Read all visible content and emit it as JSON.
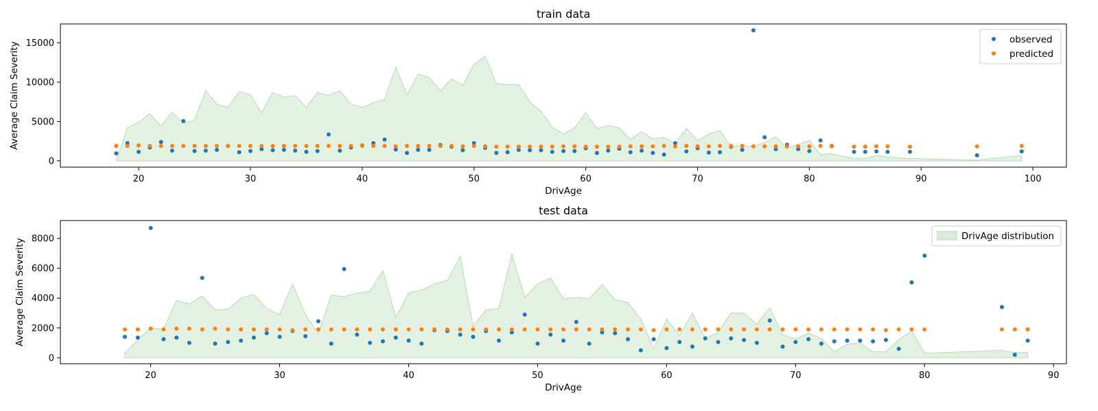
{
  "colors": {
    "observed": "#1f77b4",
    "predicted": "#ff7f0e",
    "distribution_fill": "#d9ecd9",
    "distribution_stroke": "#b4dbb4"
  },
  "chart_data": [
    {
      "type": "scatter",
      "title": "train data",
      "xlabel": "DrivAge",
      "ylabel": "Average Claim Severity",
      "xlim": [
        13,
        103
      ],
      "ylim": [
        -800,
        17400
      ],
      "xticks": [
        20,
        30,
        40,
        50,
        60,
        70,
        80,
        90,
        100
      ],
      "yticks": [
        0,
        5000,
        10000,
        15000
      ],
      "grid": false,
      "legend": {
        "position": "top-right",
        "entries": [
          "observed",
          "predicted"
        ]
      },
      "series": [
        {
          "name": "observed",
          "kind": "points",
          "x": [
            18,
            19,
            20,
            21,
            22,
            23,
            24,
            25,
            26,
            27,
            28,
            29,
            30,
            31,
            32,
            33,
            34,
            35,
            36,
            37,
            38,
            39,
            40,
            41,
            42,
            43,
            44,
            45,
            46,
            47,
            48,
            49,
            50,
            51,
            52,
            53,
            54,
            55,
            56,
            57,
            58,
            59,
            60,
            61,
            62,
            63,
            64,
            65,
            66,
            67,
            68,
            69,
            70,
            71,
            72,
            73,
            74,
            75,
            76,
            77,
            78,
            79,
            80,
            81,
            82,
            84,
            85,
            86,
            87,
            89,
            95,
            99
          ],
          "y": [
            950,
            2250,
            1150,
            1700,
            2400,
            1300,
            5050,
            1250,
            1300,
            1400,
            1900,
            1100,
            1250,
            1500,
            1350,
            1400,
            1300,
            1150,
            1250,
            3350,
            1300,
            1700,
            1950,
            2250,
            2700,
            1450,
            1000,
            1400,
            1400,
            2000,
            1800,
            1350,
            2250,
            1650,
            1000,
            1100,
            1400,
            1350,
            1350,
            1150,
            1250,
            1250,
            1600,
            1000,
            1300,
            1550,
            1100,
            1300,
            1000,
            800,
            2250,
            1200,
            1600,
            1050,
            1100,
            1800,
            1400,
            16600,
            3000,
            1500,
            2050,
            1500,
            1250,
            2600,
            1900,
            1150,
            1150,
            1200,
            1150,
            1150,
            700,
            1200
          ]
        },
        {
          "name": "predicted",
          "kind": "points",
          "x": [
            18,
            19,
            20,
            21,
            22,
            23,
            24,
            25,
            26,
            27,
            28,
            29,
            30,
            31,
            32,
            33,
            34,
            35,
            36,
            37,
            38,
            39,
            40,
            41,
            42,
            43,
            44,
            45,
            46,
            47,
            48,
            49,
            50,
            51,
            52,
            53,
            54,
            55,
            56,
            57,
            58,
            59,
            60,
            61,
            62,
            63,
            64,
            65,
            66,
            67,
            68,
            69,
            70,
            71,
            72,
            73,
            74,
            75,
            76,
            77,
            78,
            79,
            80,
            81,
            82,
            84,
            85,
            86,
            87,
            89,
            95,
            99
          ],
          "y": [
            1900,
            1900,
            1950,
            1900,
            1900,
            1900,
            1900,
            1900,
            1900,
            1900,
            1900,
            1900,
            1900,
            1900,
            1900,
            1900,
            1900,
            1900,
            1900,
            1900,
            1900,
            1900,
            1900,
            1900,
            1900,
            1850,
            1900,
            1900,
            1900,
            1900,
            1900,
            1850,
            1900,
            1850,
            1800,
            1800,
            1800,
            1800,
            1800,
            1800,
            1850,
            1850,
            1800,
            1800,
            1800,
            1800,
            1850,
            1850,
            1850,
            1900,
            1850,
            1900,
            1850,
            1850,
            1900,
            1900,
            1900,
            1850,
            1850,
            1850,
            1850,
            1850,
            1850,
            1900,
            1850,
            1800,
            1800,
            1850,
            1850,
            1800,
            1850,
            1900
          ]
        },
        {
          "name": "DrivAge distribution",
          "kind": "area",
          "x": [
            18,
            19,
            20,
            21,
            22,
            23,
            24,
            25,
            26,
            27,
            28,
            29,
            30,
            31,
            32,
            33,
            34,
            35,
            36,
            37,
            38,
            39,
            40,
            41,
            42,
            43,
            44,
            45,
            46,
            47,
            48,
            49,
            50,
            51,
            52,
            53,
            54,
            55,
            56,
            57,
            58,
            59,
            60,
            61,
            62,
            63,
            64,
            65,
            66,
            67,
            68,
            69,
            70,
            71,
            72,
            73,
            74,
            75,
            76,
            77,
            78,
            79,
            80,
            81,
            82,
            84,
            85,
            86,
            87,
            89,
            95,
            99
          ],
          "y": [
            0,
            4200,
            4900,
            6000,
            4400,
            6200,
            4800,
            5200,
            8900,
            7200,
            6800,
            8800,
            8400,
            6100,
            8700,
            8100,
            8300,
            6800,
            8700,
            8300,
            8900,
            7200,
            6800,
            7400,
            7800,
            11900,
            8400,
            11000,
            10600,
            8900,
            10400,
            9600,
            12300,
            13300,
            9800,
            9700,
            9700,
            7500,
            6300,
            4300,
            3400,
            4200,
            6100,
            4100,
            4500,
            4200,
            2700,
            3700,
            2800,
            3000,
            2200,
            4100,
            2600,
            3400,
            3900,
            1800,
            1900,
            1800,
            2300,
            3100,
            1500,
            2100,
            2600,
            800,
            900,
            300,
            300,
            700,
            500,
            300,
            100,
            700
          ]
        }
      ]
    },
    {
      "type": "scatter",
      "title": "test data",
      "xlabel": "DrivAge",
      "ylabel": "Average Claim Severity",
      "xlim": [
        13,
        91
      ],
      "ylim": [
        -400,
        9200
      ],
      "xticks": [
        20,
        30,
        40,
        50,
        60,
        70,
        80,
        90
      ],
      "yticks": [
        0,
        2000,
        4000,
        6000,
        8000
      ],
      "grid": false,
      "legend": {
        "position": "top-right",
        "entries": [
          "DrivAge distribution"
        ]
      },
      "series": [
        {
          "name": "observed",
          "kind": "points",
          "x": [
            18,
            19,
            20,
            21,
            22,
            23,
            24,
            25,
            26,
            27,
            28,
            29,
            30,
            31,
            32,
            33,
            34,
            35,
            36,
            37,
            38,
            39,
            40,
            41,
            42,
            43,
            44,
            45,
            46,
            47,
            48,
            49,
            50,
            51,
            52,
            53,
            54,
            55,
            56,
            57,
            58,
            59,
            60,
            61,
            62,
            63,
            64,
            65,
            66,
            67,
            68,
            69,
            70,
            71,
            72,
            73,
            74,
            75,
            76,
            77,
            78,
            79,
            80,
            86,
            87,
            88
          ],
          "y": [
            1400,
            1350,
            8700,
            1250,
            1350,
            1000,
            5350,
            950,
            1050,
            1150,
            1350,
            1650,
            1400,
            1800,
            1450,
            2450,
            950,
            5950,
            1550,
            1000,
            1100,
            1350,
            1150,
            950,
            1850,
            1800,
            1550,
            1400,
            1800,
            1150,
            1700,
            2900,
            950,
            1550,
            1150,
            2400,
            950,
            1700,
            1650,
            1250,
            500,
            1250,
            650,
            1050,
            750,
            1300,
            1050,
            1300,
            1200,
            1000,
            2500,
            750,
            1050,
            1250,
            950,
            1100,
            1150,
            1150,
            1100,
            1200,
            600,
            5050,
            6850,
            3400,
            200,
            1150
          ]
        },
        {
          "name": "predicted",
          "kind": "points",
          "x": [
            18,
            19,
            20,
            21,
            22,
            23,
            24,
            25,
            26,
            27,
            28,
            29,
            30,
            31,
            32,
            33,
            34,
            35,
            36,
            37,
            38,
            39,
            40,
            41,
            42,
            43,
            44,
            45,
            46,
            47,
            48,
            49,
            50,
            51,
            52,
            53,
            54,
            55,
            56,
            57,
            58,
            59,
            60,
            61,
            62,
            63,
            64,
            65,
            66,
            67,
            68,
            69,
            70,
            71,
            72,
            73,
            74,
            75,
            76,
            77,
            78,
            79,
            80,
            86,
            87,
            88
          ],
          "y": [
            1900,
            1900,
            1950,
            1900,
            1950,
            1950,
            1900,
            1950,
            1900,
            1900,
            1900,
            1900,
            1900,
            1850,
            1900,
            1900,
            1900,
            1900,
            1900,
            1900,
            1900,
            1900,
            1900,
            1900,
            1900,
            1900,
            1900,
            1900,
            1900,
            1900,
            1900,
            1900,
            1900,
            1900,
            1900,
            1900,
            1900,
            1900,
            1900,
            1900,
            1900,
            1850,
            1900,
            1900,
            1900,
            1900,
            1900,
            1900,
            1900,
            1900,
            1900,
            1900,
            1900,
            1900,
            1900,
            1900,
            1900,
            1900,
            1900,
            1850,
            1900,
            1900,
            1900,
            1900,
            1900,
            1900
          ]
        },
        {
          "name": "DrivAge distribution",
          "kind": "area",
          "x": [
            18,
            19,
            20,
            21,
            22,
            23,
            24,
            25,
            26,
            27,
            28,
            29,
            30,
            31,
            32,
            33,
            34,
            35,
            36,
            37,
            38,
            39,
            40,
            41,
            42,
            43,
            44,
            45,
            46,
            47,
            48,
            49,
            50,
            51,
            52,
            53,
            54,
            55,
            56,
            57,
            58,
            59,
            60,
            61,
            62,
            63,
            64,
            65,
            66,
            67,
            68,
            69,
            70,
            71,
            72,
            73,
            74,
            75,
            76,
            77,
            78,
            79,
            80,
            86,
            87,
            88
          ],
          "y": [
            350,
            1200,
            2000,
            1900,
            3850,
            3600,
            4150,
            3200,
            3250,
            4000,
            4250,
            3300,
            2900,
            4950,
            2900,
            1600,
            4200,
            4100,
            4350,
            4450,
            5850,
            2700,
            4350,
            4550,
            4950,
            5200,
            6800,
            2100,
            3200,
            3300,
            6950,
            4050,
            4950,
            5350,
            3950,
            4050,
            3950,
            4900,
            3900,
            3700,
            2600,
            600,
            2600,
            1500,
            3000,
            1300,
            1700,
            3000,
            3000,
            2250,
            3350,
            1550,
            1250,
            1650,
            1300,
            400,
            900,
            1000,
            400,
            400,
            1200,
            1800,
            300,
            500,
            350,
            350
          ]
        }
      ]
    }
  ]
}
